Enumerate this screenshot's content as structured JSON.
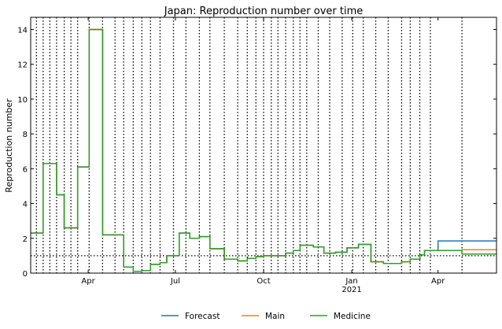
{
  "chart_data": {
    "type": "line",
    "title": "Japan: Reproduction number over time",
    "ylabel": "Reproduction number",
    "xlabel": "",
    "x_start": "2020-02-01",
    "x_end": "2021-06-01",
    "ylim": [
      0,
      14.7
    ],
    "yticks": [
      0,
      2,
      4,
      6,
      8,
      10,
      12,
      14
    ],
    "xticks": [
      {
        "date": "2020-04-01",
        "label": "Apr",
        "sub": ""
      },
      {
        "date": "2020-07-01",
        "label": "Jul",
        "sub": ""
      },
      {
        "date": "2020-10-01",
        "label": "Oct",
        "sub": ""
      },
      {
        "date": "2021-01-01",
        "label": "Jan",
        "sub": "2021"
      },
      {
        "date": "2021-04-01",
        "label": "Apr",
        "sub": ""
      }
    ],
    "reference_line": 1.0,
    "change_dates": [
      "2020-02-07",
      "2020-02-14",
      "2020-02-21",
      "2020-02-28",
      "2020-03-07",
      "2020-03-14",
      "2020-03-21",
      "2020-04-02",
      "2020-04-16",
      "2020-04-29",
      "2020-05-08",
      "2020-05-18",
      "2020-05-27",
      "2020-06-05",
      "2020-06-15",
      "2020-06-29",
      "2020-07-12",
      "2020-07-26",
      "2020-08-06",
      "2020-08-21",
      "2020-09-04",
      "2020-09-14",
      "2020-09-23",
      "2020-10-01",
      "2020-10-09",
      "2020-10-16",
      "2020-10-24",
      "2020-11-01",
      "2020-11-08",
      "2020-11-15",
      "2020-11-27",
      "2020-12-09",
      "2020-12-22",
      "2021-01-02",
      "2021-01-13",
      "2021-01-26",
      "2021-02-08",
      "2021-02-22",
      "2021-03-03",
      "2021-03-13",
      "2021-03-24",
      "2021-04-26"
    ],
    "series": [
      {
        "name": "Forecast",
        "color": "#1f77b4",
        "steps": [
          [
            "2020-02-01",
            2.3
          ],
          [
            "2020-02-14",
            6.3
          ],
          [
            "2020-02-28",
            4.5
          ],
          [
            "2020-03-07",
            2.6
          ],
          [
            "2020-03-21",
            6.1
          ],
          [
            "2020-04-02",
            14.0
          ],
          [
            "2020-04-16",
            2.2
          ],
          [
            "2020-05-08",
            0.35
          ],
          [
            "2020-05-18",
            0.1
          ],
          [
            "2020-05-27",
            0.15
          ],
          [
            "2020-06-05",
            0.5
          ],
          [
            "2020-06-15",
            0.6
          ],
          [
            "2020-06-22",
            1.0
          ],
          [
            "2020-07-05",
            2.3
          ],
          [
            "2020-07-16",
            2.0
          ],
          [
            "2020-07-26",
            2.1
          ],
          [
            "2020-08-06",
            1.4
          ],
          [
            "2020-08-21",
            0.8
          ],
          [
            "2020-09-04",
            0.7
          ],
          [
            "2020-09-14",
            0.85
          ],
          [
            "2020-09-23",
            0.95
          ],
          [
            "2020-10-01",
            1.0
          ],
          [
            "2020-10-24",
            1.15
          ],
          [
            "2020-11-01",
            1.3
          ],
          [
            "2020-11-08",
            1.6
          ],
          [
            "2020-11-22",
            1.5
          ],
          [
            "2020-12-03",
            1.15
          ],
          [
            "2020-12-15",
            1.2
          ],
          [
            "2020-12-27",
            1.45
          ],
          [
            "2021-01-08",
            1.65
          ],
          [
            "2021-01-21",
            0.65
          ],
          [
            "2021-02-03",
            0.55
          ],
          [
            "2021-02-22",
            0.65
          ],
          [
            "2021-03-03",
            0.8
          ],
          [
            "2021-03-13",
            1.05
          ],
          [
            "2021-03-18",
            1.3
          ],
          [
            "2021-04-01",
            1.85
          ],
          [
            "2021-06-01",
            1.85
          ]
        ]
      },
      {
        "name": "Main",
        "color": "#ff7f0e",
        "steps": [
          [
            "2020-02-01",
            2.3
          ],
          [
            "2020-02-14",
            6.3
          ],
          [
            "2020-02-28",
            4.5
          ],
          [
            "2020-03-07",
            2.6
          ],
          [
            "2020-03-21",
            6.1
          ],
          [
            "2020-04-02",
            14.0
          ],
          [
            "2020-04-16",
            2.2
          ],
          [
            "2020-05-08",
            0.35
          ],
          [
            "2020-05-18",
            0.1
          ],
          [
            "2020-05-27",
            0.15
          ],
          [
            "2020-06-05",
            0.5
          ],
          [
            "2020-06-15",
            0.6
          ],
          [
            "2020-06-22",
            1.0
          ],
          [
            "2020-07-05",
            2.3
          ],
          [
            "2020-07-16",
            2.0
          ],
          [
            "2020-07-26",
            2.1
          ],
          [
            "2020-08-06",
            1.4
          ],
          [
            "2020-08-21",
            0.8
          ],
          [
            "2020-09-04",
            0.7
          ],
          [
            "2020-09-14",
            0.85
          ],
          [
            "2020-09-23",
            0.95
          ],
          [
            "2020-10-01",
            1.0
          ],
          [
            "2020-10-24",
            1.15
          ],
          [
            "2020-11-01",
            1.3
          ],
          [
            "2020-11-08",
            1.6
          ],
          [
            "2020-11-22",
            1.5
          ],
          [
            "2020-12-03",
            1.15
          ],
          [
            "2020-12-15",
            1.2
          ],
          [
            "2020-12-27",
            1.45
          ],
          [
            "2021-01-08",
            1.65
          ],
          [
            "2021-01-21",
            0.65
          ],
          [
            "2021-02-03",
            0.55
          ],
          [
            "2021-02-22",
            0.65
          ],
          [
            "2021-03-03",
            0.8
          ],
          [
            "2021-03-13",
            1.05
          ],
          [
            "2021-03-18",
            1.3
          ],
          [
            "2021-04-26",
            1.35
          ],
          [
            "2021-06-01",
            1.35
          ]
        ]
      },
      {
        "name": "Medicine",
        "color": "#2ca02c",
        "steps": [
          [
            "2020-02-01",
            2.3
          ],
          [
            "2020-02-14",
            6.3
          ],
          [
            "2020-02-28",
            4.5
          ],
          [
            "2020-03-07",
            2.6
          ],
          [
            "2020-03-21",
            6.1
          ],
          [
            "2020-04-02",
            14.0
          ],
          [
            "2020-04-16",
            2.2
          ],
          [
            "2020-05-08",
            0.35
          ],
          [
            "2020-05-18",
            0.1
          ],
          [
            "2020-05-27",
            0.15
          ],
          [
            "2020-06-05",
            0.5
          ],
          [
            "2020-06-15",
            0.6
          ],
          [
            "2020-06-22",
            1.0
          ],
          [
            "2020-07-05",
            2.3
          ],
          [
            "2020-07-16",
            2.0
          ],
          [
            "2020-07-26",
            2.1
          ],
          [
            "2020-08-06",
            1.4
          ],
          [
            "2020-08-21",
            0.8
          ],
          [
            "2020-09-04",
            0.7
          ],
          [
            "2020-09-14",
            0.85
          ],
          [
            "2020-09-23",
            0.95
          ],
          [
            "2020-10-01",
            1.0
          ],
          [
            "2020-10-24",
            1.15
          ],
          [
            "2020-11-01",
            1.3
          ],
          [
            "2020-11-08",
            1.6
          ],
          [
            "2020-11-22",
            1.5
          ],
          [
            "2020-12-03",
            1.15
          ],
          [
            "2020-12-15",
            1.2
          ],
          [
            "2020-12-27",
            1.45
          ],
          [
            "2021-01-08",
            1.65
          ],
          [
            "2021-01-21",
            0.65
          ],
          [
            "2021-02-03",
            0.55
          ],
          [
            "2021-02-22",
            0.65
          ],
          [
            "2021-03-03",
            0.8
          ],
          [
            "2021-03-13",
            1.05
          ],
          [
            "2021-03-18",
            1.3
          ],
          [
            "2021-04-26",
            1.1
          ],
          [
            "2021-06-01",
            1.1
          ]
        ]
      }
    ],
    "grid": false,
    "legend_position": "bottom-center"
  }
}
